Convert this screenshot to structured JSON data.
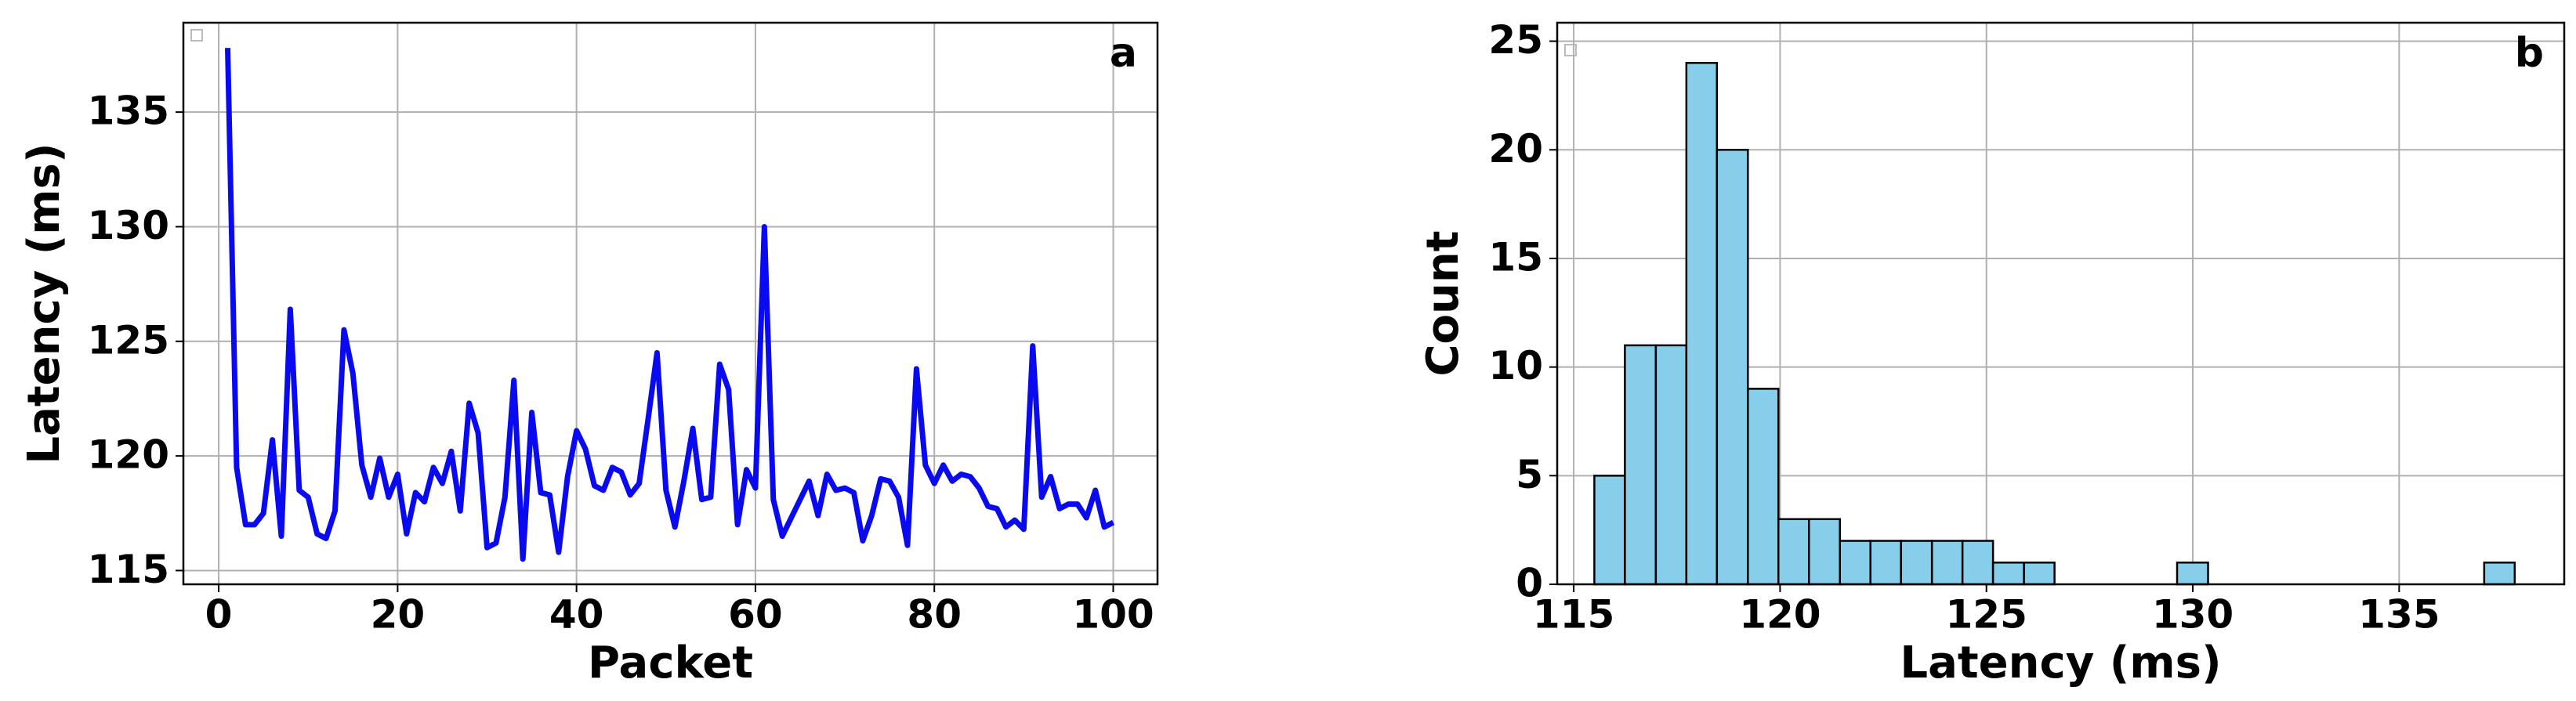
{
  "chart_data": [
    {
      "type": "line",
      "annotation": "a",
      "xlabel": "Packet",
      "ylabel": "Latency (ms)",
      "color": "#0a0af0",
      "grid": true,
      "x": [
        1,
        2,
        3,
        4,
        5,
        6,
        7,
        8,
        9,
        10,
        11,
        12,
        13,
        14,
        15,
        16,
        17,
        18,
        19,
        20,
        21,
        22,
        23,
        24,
        25,
        26,
        27,
        28,
        29,
        30,
        31,
        32,
        33,
        34,
        35,
        36,
        37,
        38,
        39,
        40,
        41,
        42,
        43,
        44,
        45,
        46,
        47,
        48,
        49,
        50,
        51,
        52,
        53,
        54,
        55,
        56,
        57,
        58,
        59,
        60,
        61,
        62,
        63,
        64,
        65,
        66,
        67,
        68,
        69,
        70,
        71,
        72,
        73,
        74,
        75,
        76,
        77,
        78,
        79,
        80,
        81,
        82,
        83,
        84,
        85,
        86,
        87,
        88,
        89,
        90,
        91,
        92,
        93,
        94,
        95,
        96,
        97,
        98,
        99,
        100
      ],
      "values": [
        137.8,
        119.5,
        117.0,
        117.0,
        117.5,
        120.7,
        116.5,
        126.4,
        118.5,
        118.2,
        116.6,
        116.4,
        117.6,
        125.5,
        123.6,
        119.6,
        118.2,
        119.9,
        118.2,
        119.2,
        116.6,
        118.4,
        118.0,
        119.5,
        118.8,
        120.2,
        117.6,
        122.3,
        121.0,
        116.0,
        116.2,
        118.2,
        123.3,
        115.5,
        121.9,
        118.4,
        118.3,
        115.8,
        119.1,
        121.1,
        120.3,
        118.7,
        118.5,
        119.5,
        119.3,
        118.3,
        118.8,
        121.6,
        124.5,
        118.5,
        116.9,
        118.9,
        121.2,
        118.1,
        118.2,
        124.0,
        122.9,
        117.0,
        119.4,
        118.6,
        130.0,
        118.1,
        116.5,
        117.3,
        118.1,
        118.9,
        117.4,
        119.2,
        118.5,
        118.6,
        118.4,
        116.3,
        117.4,
        119.0,
        118.9,
        118.2,
        116.1,
        123.8,
        119.6,
        118.8,
        119.6,
        118.9,
        119.2,
        119.1,
        118.6,
        117.8,
        117.7,
        116.9,
        117.2,
        116.8,
        124.8,
        118.2,
        119.1,
        117.7,
        117.9,
        117.9,
        117.3,
        118.5,
        116.9,
        117.1
      ],
      "xlim": [
        -3.95,
        104.95
      ],
      "xticks": [
        0,
        20,
        40,
        60,
        80,
        100
      ],
      "ylim": [
        114.4,
        138.9
      ],
      "yticks": [
        115,
        120,
        125,
        130,
        135
      ]
    },
    {
      "type": "histogram",
      "annotation": "b",
      "xlabel": "Latency (ms)",
      "ylabel": "Count",
      "color": "#87ceeb",
      "edgecolor": "#000000",
      "grid": true,
      "bins": [
        115.5,
        116.24,
        116.99,
        117.73,
        118.47,
        119.22,
        119.96,
        120.7,
        121.45,
        122.19,
        122.93,
        123.68,
        124.42,
        125.16,
        125.91,
        126.65,
        127.39,
        128.14,
        128.88,
        129.62,
        130.37,
        131.11,
        131.85,
        132.6,
        133.34,
        134.08,
        134.83,
        135.57,
        136.31,
        137.06,
        137.8
      ],
      "counts": [
        5,
        11,
        11,
        24,
        20,
        9,
        3,
        3,
        2,
        2,
        2,
        2,
        2,
        1,
        1,
        0,
        0,
        0,
        0,
        1,
        0,
        0,
        0,
        0,
        0,
        0,
        0,
        0,
        0,
        1
      ],
      "xlim": [
        114.6,
        139.0
      ],
      "xticks": [
        115,
        120,
        125,
        130,
        135
      ],
      "ylim": [
        0,
        25.85
      ],
      "yticks": [
        0,
        5,
        10,
        15,
        20,
        25
      ]
    }
  ]
}
